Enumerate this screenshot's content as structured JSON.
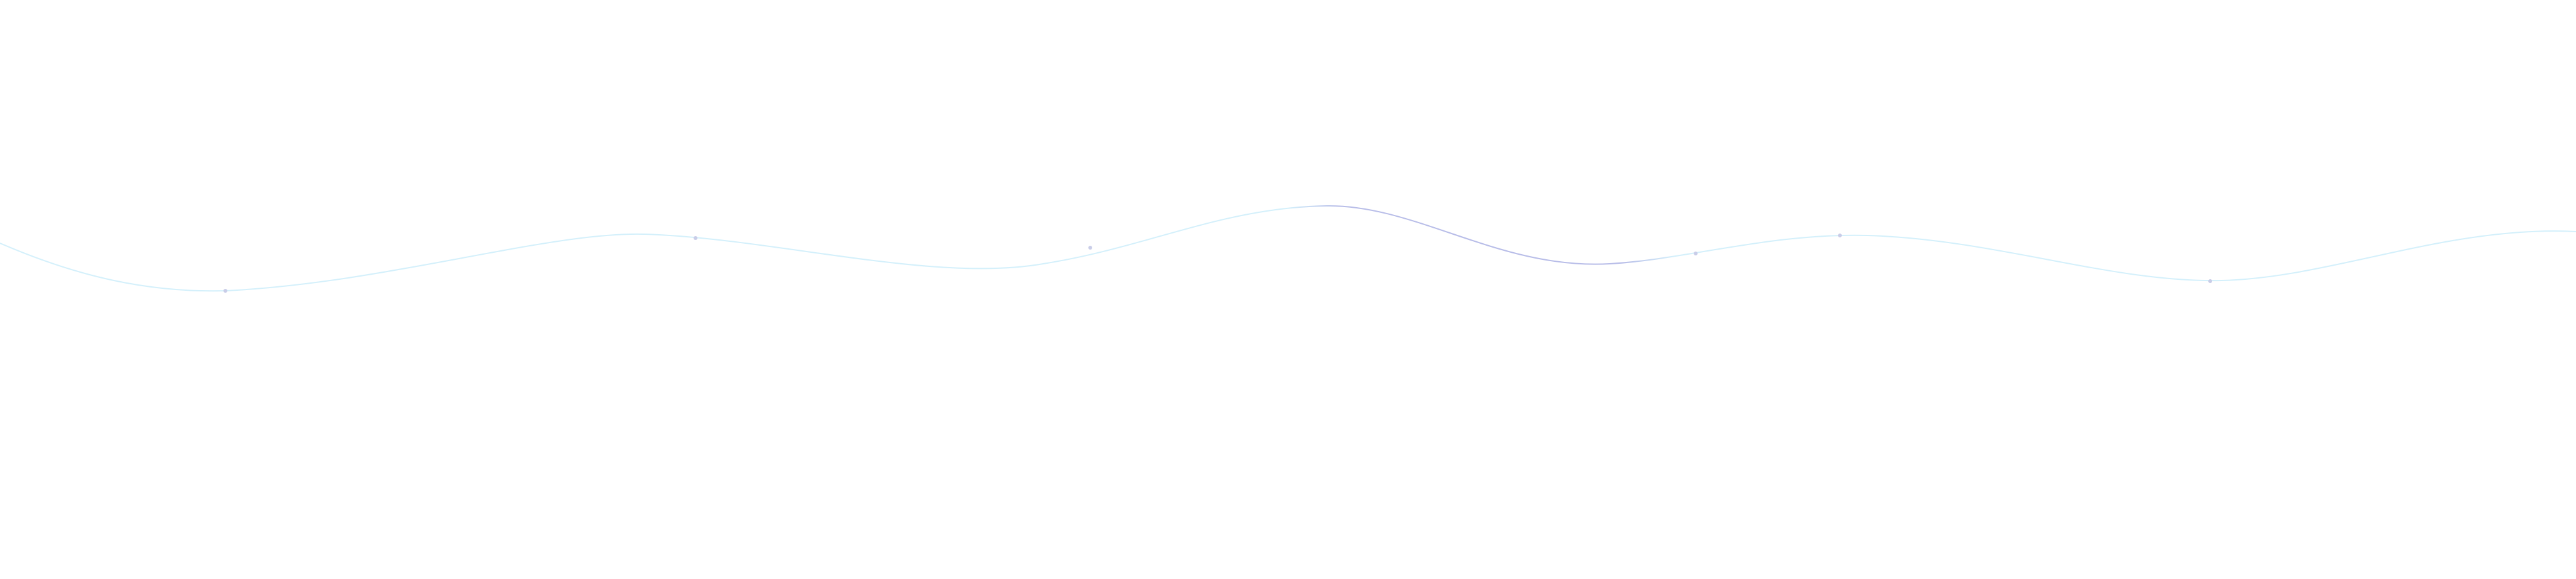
{
  "decoration": {
    "type": "wave-line",
    "colors": {
      "line": "#d4f0fb",
      "highlight": "#b8bde8",
      "marker": "#c9cde8",
      "background": "#ffffff"
    },
    "marker_count": 7
  }
}
